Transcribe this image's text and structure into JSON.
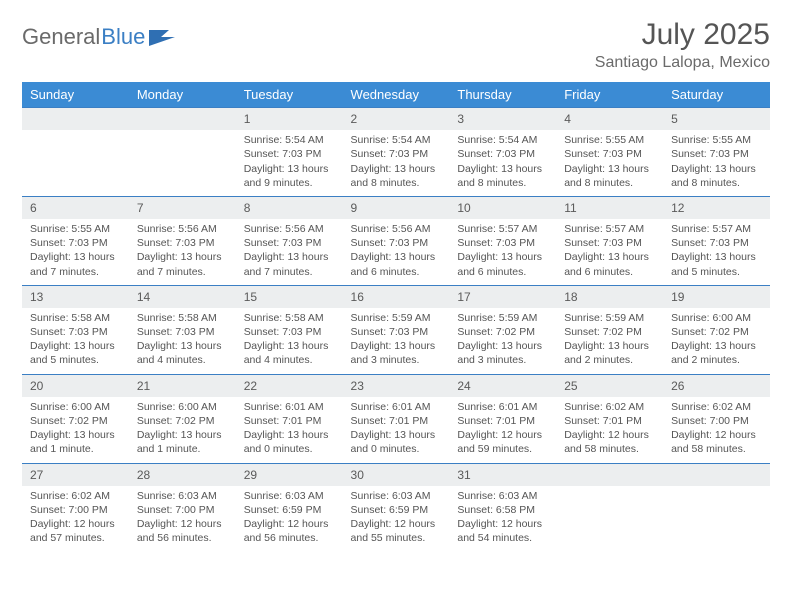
{
  "brand": {
    "text1": "General",
    "text2": "Blue"
  },
  "title": "July 2025",
  "location": "Santiago Lalopa, Mexico",
  "colors": {
    "header_bg": "#3b8bd4",
    "accent": "#3b7fc4",
    "daynum_bg": "#eceeef",
    "text": "#555555"
  },
  "daysOfWeek": [
    "Sunday",
    "Monday",
    "Tuesday",
    "Wednesday",
    "Thursday",
    "Friday",
    "Saturday"
  ],
  "weeks": [
    [
      null,
      null,
      {
        "n": "1",
        "sr": "5:54 AM",
        "ss": "7:03 PM",
        "dl": "13 hours and 9 minutes."
      },
      {
        "n": "2",
        "sr": "5:54 AM",
        "ss": "7:03 PM",
        "dl": "13 hours and 8 minutes."
      },
      {
        "n": "3",
        "sr": "5:54 AM",
        "ss": "7:03 PM",
        "dl": "13 hours and 8 minutes."
      },
      {
        "n": "4",
        "sr": "5:55 AM",
        "ss": "7:03 PM",
        "dl": "13 hours and 8 minutes."
      },
      {
        "n": "5",
        "sr": "5:55 AM",
        "ss": "7:03 PM",
        "dl": "13 hours and 8 minutes."
      }
    ],
    [
      {
        "n": "6",
        "sr": "5:55 AM",
        "ss": "7:03 PM",
        "dl": "13 hours and 7 minutes."
      },
      {
        "n": "7",
        "sr": "5:56 AM",
        "ss": "7:03 PM",
        "dl": "13 hours and 7 minutes."
      },
      {
        "n": "8",
        "sr": "5:56 AM",
        "ss": "7:03 PM",
        "dl": "13 hours and 7 minutes."
      },
      {
        "n": "9",
        "sr": "5:56 AM",
        "ss": "7:03 PM",
        "dl": "13 hours and 6 minutes."
      },
      {
        "n": "10",
        "sr": "5:57 AM",
        "ss": "7:03 PM",
        "dl": "13 hours and 6 minutes."
      },
      {
        "n": "11",
        "sr": "5:57 AM",
        "ss": "7:03 PM",
        "dl": "13 hours and 6 minutes."
      },
      {
        "n": "12",
        "sr": "5:57 AM",
        "ss": "7:03 PM",
        "dl": "13 hours and 5 minutes."
      }
    ],
    [
      {
        "n": "13",
        "sr": "5:58 AM",
        "ss": "7:03 PM",
        "dl": "13 hours and 5 minutes."
      },
      {
        "n": "14",
        "sr": "5:58 AM",
        "ss": "7:03 PM",
        "dl": "13 hours and 4 minutes."
      },
      {
        "n": "15",
        "sr": "5:58 AM",
        "ss": "7:03 PM",
        "dl": "13 hours and 4 minutes."
      },
      {
        "n": "16",
        "sr": "5:59 AM",
        "ss": "7:03 PM",
        "dl": "13 hours and 3 minutes."
      },
      {
        "n": "17",
        "sr": "5:59 AM",
        "ss": "7:02 PM",
        "dl": "13 hours and 3 minutes."
      },
      {
        "n": "18",
        "sr": "5:59 AM",
        "ss": "7:02 PM",
        "dl": "13 hours and 2 minutes."
      },
      {
        "n": "19",
        "sr": "6:00 AM",
        "ss": "7:02 PM",
        "dl": "13 hours and 2 minutes."
      }
    ],
    [
      {
        "n": "20",
        "sr": "6:00 AM",
        "ss": "7:02 PM",
        "dl": "13 hours and 1 minute."
      },
      {
        "n": "21",
        "sr": "6:00 AM",
        "ss": "7:02 PM",
        "dl": "13 hours and 1 minute."
      },
      {
        "n": "22",
        "sr": "6:01 AM",
        "ss": "7:01 PM",
        "dl": "13 hours and 0 minutes."
      },
      {
        "n": "23",
        "sr": "6:01 AM",
        "ss": "7:01 PM",
        "dl": "13 hours and 0 minutes."
      },
      {
        "n": "24",
        "sr": "6:01 AM",
        "ss": "7:01 PM",
        "dl": "12 hours and 59 minutes."
      },
      {
        "n": "25",
        "sr": "6:02 AM",
        "ss": "7:01 PM",
        "dl": "12 hours and 58 minutes."
      },
      {
        "n": "26",
        "sr": "6:02 AM",
        "ss": "7:00 PM",
        "dl": "12 hours and 58 minutes."
      }
    ],
    [
      {
        "n": "27",
        "sr": "6:02 AM",
        "ss": "7:00 PM",
        "dl": "12 hours and 57 minutes."
      },
      {
        "n": "28",
        "sr": "6:03 AM",
        "ss": "7:00 PM",
        "dl": "12 hours and 56 minutes."
      },
      {
        "n": "29",
        "sr": "6:03 AM",
        "ss": "6:59 PM",
        "dl": "12 hours and 56 minutes."
      },
      {
        "n": "30",
        "sr": "6:03 AM",
        "ss": "6:59 PM",
        "dl": "12 hours and 55 minutes."
      },
      {
        "n": "31",
        "sr": "6:03 AM",
        "ss": "6:58 PM",
        "dl": "12 hours and 54 minutes."
      },
      null,
      null
    ]
  ],
  "labels": {
    "sunrise": "Sunrise:",
    "sunset": "Sunset:",
    "daylight": "Daylight:"
  }
}
